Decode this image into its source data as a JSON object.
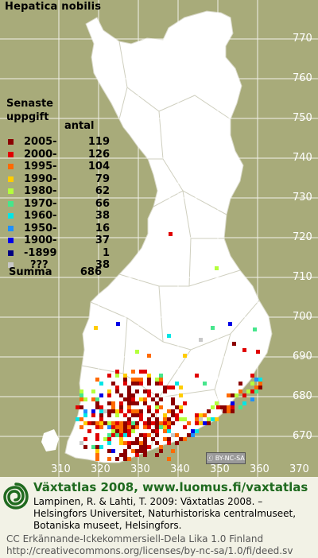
{
  "title": "Hepatica nobilis",
  "legend": {
    "heading_line1": "Senaste",
    "heading_line2": "uppgift",
    "count_header": "antal",
    "rows": [
      {
        "label": "2005-",
        "count": "119",
        "color": "#8b0000"
      },
      {
        "label": "2000-",
        "count": "126",
        "color": "#e00000"
      },
      {
        "label": "1995-",
        "count": "104",
        "color": "#ff6a00"
      },
      {
        "label": "1990-",
        "count": "79",
        "color": "#ffcc00"
      },
      {
        "label": "1980-",
        "count": "62",
        "color": "#b4ff3c"
      },
      {
        "label": "1970-",
        "count": "66",
        "color": "#46e68c"
      },
      {
        "label": "1960-",
        "count": "38",
        "color": "#00e6e6"
      },
      {
        "label": "1950-",
        "count": "16",
        "color": "#1e90ff"
      },
      {
        "label": "1900-",
        "count": "37",
        "color": "#0000e6"
      },
      {
        "label": "-1899",
        "count": "1",
        "color": "#000080"
      },
      {
        "label": "???",
        "count": "38",
        "color": "#c8c8c8"
      }
    ],
    "summa_label": "Summa",
    "summa_count": "686"
  },
  "map_colors": {
    "background": "#a8ab7a",
    "land": "#ffffff",
    "borders": "#c8c8b4"
  },
  "y_axis_ticks": [
    "770",
    "760",
    "750",
    "740",
    "730",
    "720",
    "710",
    "700",
    "690",
    "680",
    "670"
  ],
  "x_axis_ticks": [
    "310",
    "320",
    "330",
    "340",
    "350",
    "360",
    "370"
  ],
  "license_badge": "BY-NC-SA",
  "footer": {
    "site": "Växtatlas 2008, www.luomus.fi/vaxtatlas",
    "citation": "Lampinen, R. & Lahti, T. 2009: Växtatlas 2008. –\nHelsingfors Universitet, Naturhistoriska centralmuseet,\nBotaniska museet, Helsingfors.",
    "license": "CC Erkännande-Ickekommersiell-Dela Lika 1.0 Finland\nhttp://creativecommons.org/licenses/by-nc-sa/1.0/fi/deed.sv"
  }
}
